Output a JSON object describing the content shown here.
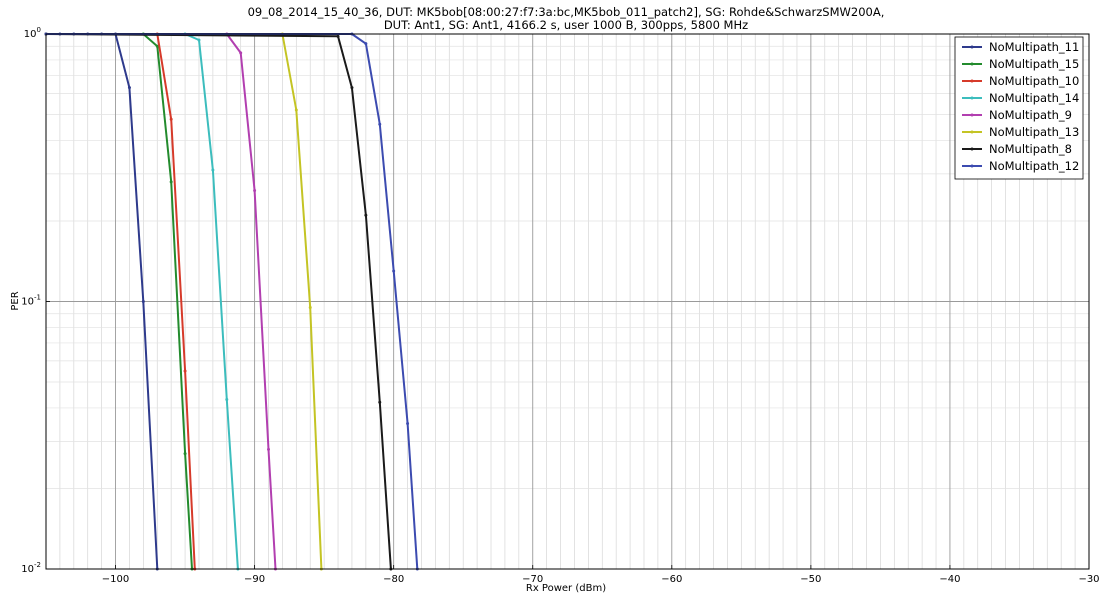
{
  "chart_data": {
    "type": "line",
    "title_lines": [
      "09_08_2014_15_40_36, DUT: MK5bob[08:00:27:f7:3a:bc,MK5bob_011_patch2], SG: Rohde&SchwarzSMW200A,",
      "DUT: Ant1, SG: Ant1, 4166.2 s, user 1000 B, 300pps, 5800 MHz"
    ],
    "xlabel": "Rx Power (dBm)",
    "ylabel": "PER",
    "xlim": [
      -105,
      -30
    ],
    "ylim": [
      0.01,
      1
    ],
    "yscale": "log",
    "grid": true,
    "legend_position": "top-right",
    "x_ticks": [
      -100,
      -90,
      -80,
      -70,
      -60,
      -50,
      -40,
      -30
    ],
    "x_tick_labels": [
      "−100",
      "−90",
      "−80",
      "−70",
      "−60",
      "−50",
      "−40",
      "−30"
    ],
    "y_ticks": [
      {
        "value": 1,
        "base": "10",
        "exp": "0"
      },
      {
        "value": 0.1,
        "base": "10",
        "exp": "-1"
      },
      {
        "value": 0.01,
        "base": "10",
        "exp": "-2"
      }
    ],
    "series": [
      {
        "name": "NoMultipath_11",
        "color": "#2e3a8c",
        "points": [
          [
            -105,
            1
          ],
          [
            -104,
            1
          ],
          [
            -103,
            1
          ],
          [
            -102,
            1
          ],
          [
            -101,
            1
          ],
          [
            -100,
            1
          ],
          [
            -99,
            0.63
          ],
          [
            -98,
            0.1
          ],
          [
            -97,
            0.01
          ]
        ]
      },
      {
        "name": "NoMultipath_15",
        "color": "#238b2d",
        "points": [
          [
            -105,
            1
          ],
          [
            -98,
            1
          ],
          [
            -97,
            0.9
          ],
          [
            -96,
            0.28
          ],
          [
            -95,
            0.027
          ],
          [
            -94.5,
            0.01
          ]
        ]
      },
      {
        "name": "NoMultipath_10",
        "color": "#d63a2a",
        "points": [
          [
            -105,
            1
          ],
          [
            -97,
            1
          ],
          [
            -96,
            0.48
          ],
          [
            -95,
            0.055
          ],
          [
            -94.3,
            0.01
          ]
        ]
      },
      {
        "name": "NoMultipath_14",
        "color": "#3cbdbd",
        "points": [
          [
            -105,
            1
          ],
          [
            -95,
            1
          ],
          [
            -94,
            0.95
          ],
          [
            -93,
            0.31
          ],
          [
            -92,
            0.043
          ],
          [
            -91.2,
            0.01
          ]
        ]
      },
      {
        "name": "NoMultipath_9",
        "color": "#b23fb0",
        "points": [
          [
            -105,
            1
          ],
          [
            -92,
            1
          ],
          [
            -91,
            0.85
          ],
          [
            -90,
            0.26
          ],
          [
            -89,
            0.028
          ],
          [
            -88.5,
            0.01
          ]
        ]
      },
      {
        "name": "NoMultipath_13",
        "color": "#c4c424",
        "points": [
          [
            -105,
            1
          ],
          [
            -88,
            1
          ],
          [
            -87,
            0.52
          ],
          [
            -86,
            0.095
          ],
          [
            -85.2,
            0.01
          ]
        ]
      },
      {
        "name": "NoMultipath_8",
        "color": "#1a1a1a",
        "points": [
          [
            -105,
            1
          ],
          [
            -84,
            0.98
          ],
          [
            -83,
            0.63
          ],
          [
            -82,
            0.21
          ],
          [
            -81,
            0.042
          ],
          [
            -80.2,
            0.01
          ]
        ]
      },
      {
        "name": "NoMultipath_12",
        "color": "#3c4bb0",
        "points": [
          [
            -105,
            1
          ],
          [
            -83,
            1
          ],
          [
            -82,
            0.92
          ],
          [
            -81,
            0.46
          ],
          [
            -80,
            0.13
          ],
          [
            -79,
            0.035
          ],
          [
            -78.3,
            0.01
          ]
        ]
      }
    ]
  }
}
